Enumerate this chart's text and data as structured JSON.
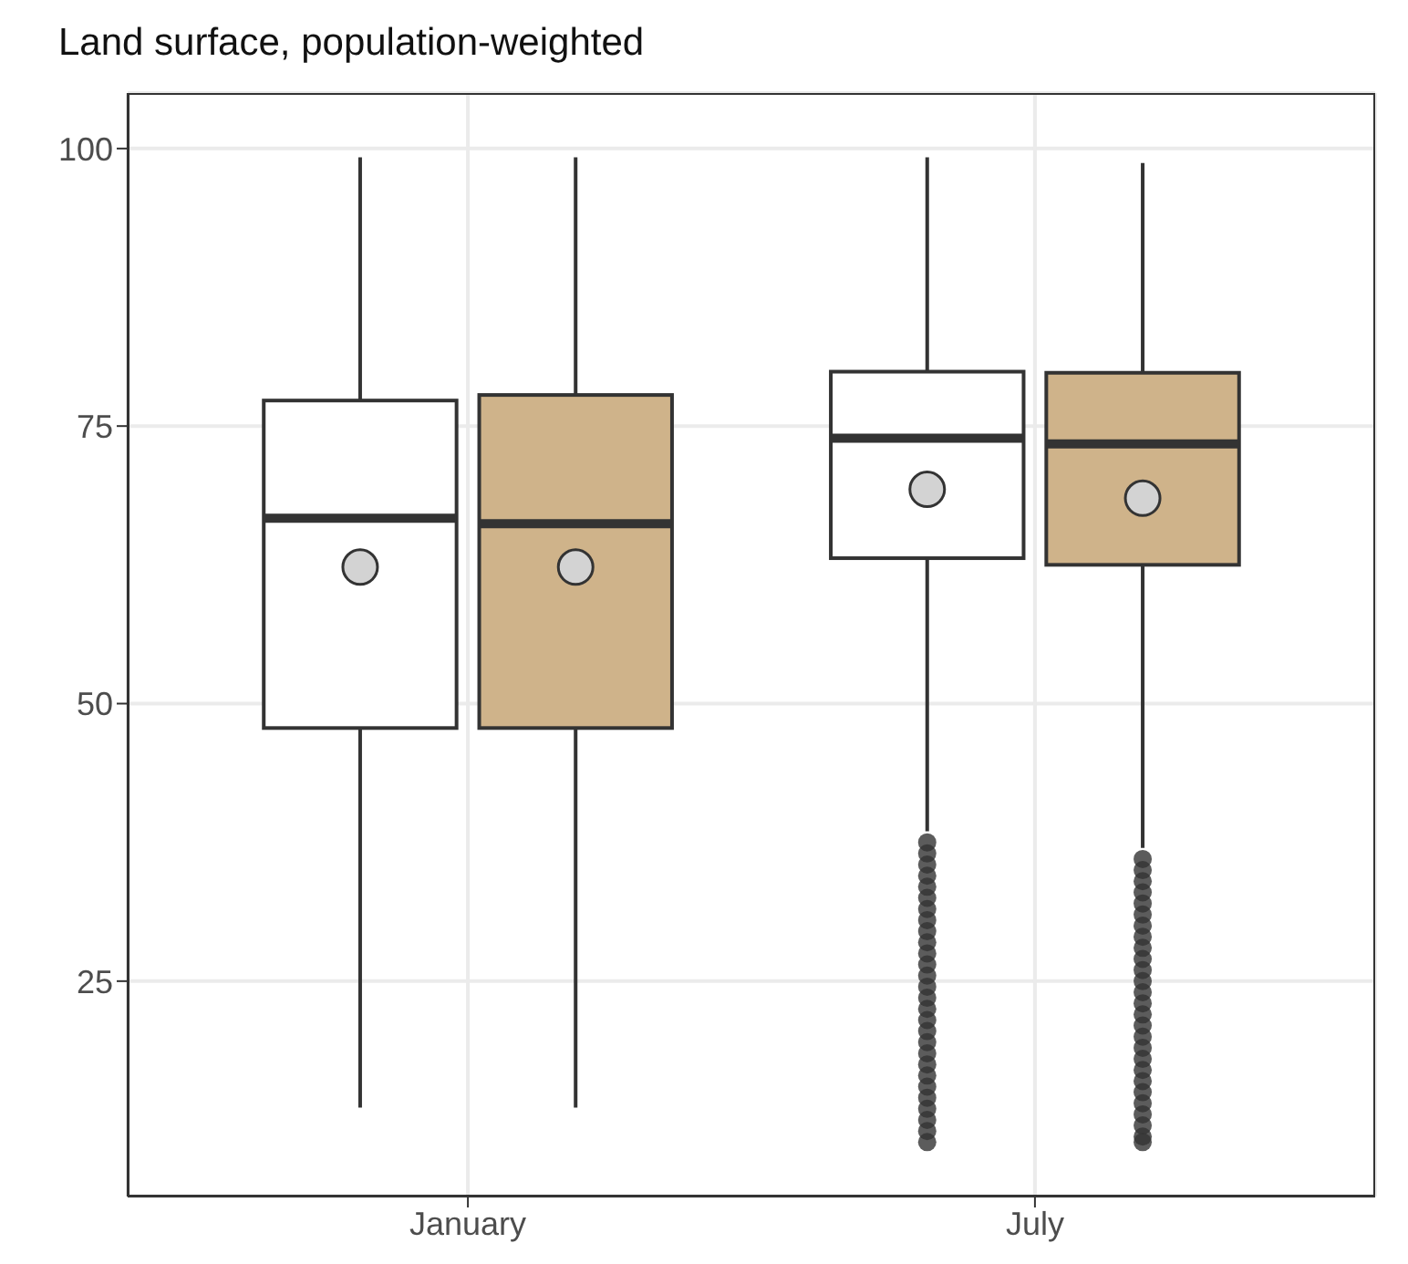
{
  "chart_data": {
    "type": "box",
    "title": "Land surface, population-weighted",
    "categories": [
      "January",
      "July"
    ],
    "series": [
      {
        "color": "#ffffff",
        "boxes": [
          {
            "low": 13.6,
            "q1": 47.8,
            "median": 66.7,
            "q3": 77.3,
            "high": 99.2,
            "mean": 62.3
          },
          {
            "low": 38.5,
            "q1": 63.1,
            "median": 73.9,
            "q3": 79.9,
            "high": 99.2,
            "mean": 69.3,
            "outliers": [
              37.5,
              36.5,
              35.5,
              34.5,
              33.5,
              32.5,
              31.5,
              30.5,
              29.5,
              28.5,
              27.5,
              26.5,
              25.5,
              24.5,
              23.5,
              22.5,
              21.5,
              20.5,
              19.5,
              18.5,
              17.5,
              16.5,
              15.5,
              14.5,
              13.5,
              12.5,
              11.5,
              10.5
            ]
          }
        ]
      },
      {
        "color": "#cfb38a",
        "boxes": [
          {
            "low": 13.6,
            "q1": 47.8,
            "median": 66.2,
            "q3": 77.8,
            "high": 99.2,
            "mean": 62.3
          },
          {
            "low": 37,
            "q1": 62.5,
            "median": 73.4,
            "q3": 79.8,
            "high": 98.7,
            "mean": 68.5,
            "outliers": [
              36,
              35,
              34,
              33,
              32,
              31,
              30,
              29,
              28,
              27,
              26,
              25,
              24,
              23,
              22,
              21,
              20,
              19,
              18,
              17,
              16,
              15,
              14,
              13,
              12,
              11,
              10.5
            ]
          }
        ]
      }
    ],
    "ylim": [
      5.6,
      105
    ],
    "yticks": [
      25,
      50,
      75,
      100
    ],
    "grid": true
  }
}
